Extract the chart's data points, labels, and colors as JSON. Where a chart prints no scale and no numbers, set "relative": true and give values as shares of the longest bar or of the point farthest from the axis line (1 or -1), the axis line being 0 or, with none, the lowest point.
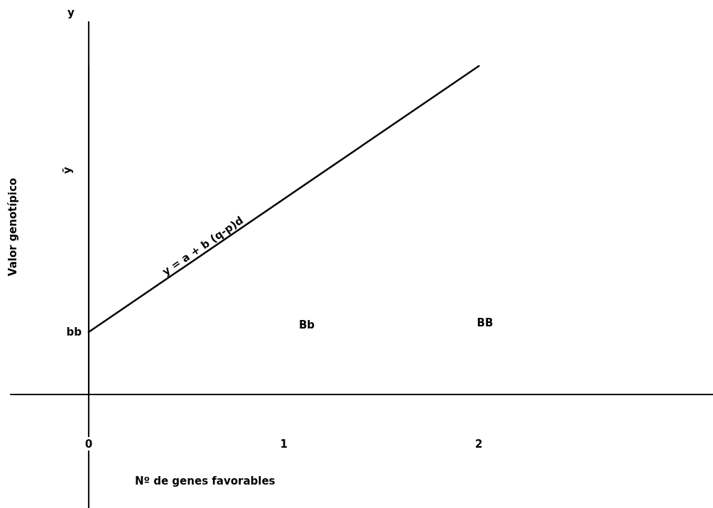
{
  "chart_data": {
    "type": "line",
    "relative": true,
    "xlabel": "Nº de genes favorables",
    "x": [
      0,
      2
    ],
    "xlim": [
      -0.4,
      3.2
    ],
    "xticks": [
      0,
      1,
      2
    ],
    "series": [
      {
        "color": "#000000",
        "values": [
          0.19,
          1
        ]
      }
    ],
    "annotations": [
      "y",
      "ȳ",
      "Valor genotípico",
      "Bb",
      "BB",
      {
        "text": "y = a + b (q-p)d",
        "x": 0.6,
        "y": 0.43
      },
      {
        "text": "bb",
        "x": 0,
        "y": 0.19
      }
    ],
    "marker": "none",
    "line_style": "solid",
    "tick_labels": "x"
  }
}
